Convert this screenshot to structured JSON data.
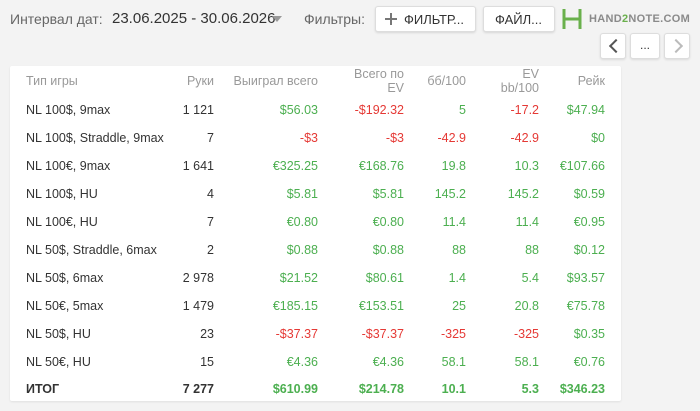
{
  "header": {
    "date_label": "Интервал дат:",
    "date_range": "23.06.2025 - 30.06.2026",
    "filters_label": "Фильтры:",
    "filter_button": "ФИЛЬТР...",
    "file_button": "ФАЙЛ...",
    "logo_text_1": "HAND",
    "logo_text_2": "2",
    "logo_text_3": "NOTE.COM",
    "pager_more": "..."
  },
  "colors": {
    "positive": "#4caf50",
    "negative": "#e53935",
    "brand": "#6ab04c"
  },
  "table": {
    "columns": [
      "Тип игры",
      "Руки",
      "Выиграл всего",
      "Всего по EV",
      "бб/100",
      "EV bb/100",
      "Рейк"
    ],
    "rows": [
      {
        "cells": [
          "NL 100$, 9max",
          "1 121",
          "$56.03",
          "-$192.32",
          "5",
          "-17.2",
          "$47.94"
        ],
        "signs": [
          "",
          "",
          "pos",
          "neg",
          "pos",
          "neg",
          "pos"
        ]
      },
      {
        "cells": [
          "NL 100$, Straddle, 9max",
          "7",
          "-$3",
          "-$3",
          "-42.9",
          "-42.9",
          "$0"
        ],
        "signs": [
          "",
          "",
          "neg",
          "neg",
          "neg",
          "neg",
          "pos"
        ]
      },
      {
        "cells": [
          "NL 100€, 9max",
          "1 641",
          "€325.25",
          "€168.76",
          "19.8",
          "10.3",
          "€107.66"
        ],
        "signs": [
          "",
          "",
          "pos",
          "pos",
          "pos",
          "pos",
          "pos"
        ]
      },
      {
        "cells": [
          "NL 100$, HU",
          "4",
          "$5.81",
          "$5.81",
          "145.2",
          "145.2",
          "$0.59"
        ],
        "signs": [
          "",
          "",
          "pos",
          "pos",
          "pos",
          "pos",
          "pos"
        ]
      },
      {
        "cells": [
          "NL 100€, HU",
          "7",
          "€0.80",
          "€0.80",
          "11.4",
          "11.4",
          "€0.95"
        ],
        "signs": [
          "",
          "",
          "pos",
          "pos",
          "pos",
          "pos",
          "pos"
        ]
      },
      {
        "cells": [
          "NL 50$, Straddle, 6max",
          "2",
          "$0.88",
          "$0.88",
          "88",
          "88",
          "$0.12"
        ],
        "signs": [
          "",
          "",
          "pos",
          "pos",
          "pos",
          "pos",
          "pos"
        ]
      },
      {
        "cells": [
          "NL 50$, 6max",
          "2 978",
          "$21.52",
          "$80.61",
          "1.4",
          "5.4",
          "$93.57"
        ],
        "signs": [
          "",
          "",
          "pos",
          "pos",
          "pos",
          "pos",
          "pos"
        ]
      },
      {
        "cells": [
          "NL 50€, 5max",
          "1 479",
          "€185.15",
          "€153.51",
          "25",
          "20.8",
          "€75.78"
        ],
        "signs": [
          "",
          "",
          "pos",
          "pos",
          "pos",
          "pos",
          "pos"
        ]
      },
      {
        "cells": [
          "NL 50$, HU",
          "23",
          "-$37.37",
          "-$37.37",
          "-325",
          "-325",
          "$0.35"
        ],
        "signs": [
          "",
          "",
          "neg",
          "neg",
          "neg",
          "neg",
          "pos"
        ]
      },
      {
        "cells": [
          "NL 50€, HU",
          "15",
          "€4.36",
          "€4.36",
          "58.1",
          "58.1",
          "€0.76"
        ],
        "signs": [
          "",
          "",
          "pos",
          "pos",
          "pos",
          "pos",
          "pos"
        ]
      }
    ],
    "total": {
      "cells": [
        "ИТОГ",
        "7 277",
        "$610.99",
        "$214.78",
        "10.1",
        "5.3",
        "$346.23"
      ],
      "signs": [
        "",
        "",
        "pos",
        "pos",
        "pos",
        "pos",
        "pos"
      ]
    }
  }
}
